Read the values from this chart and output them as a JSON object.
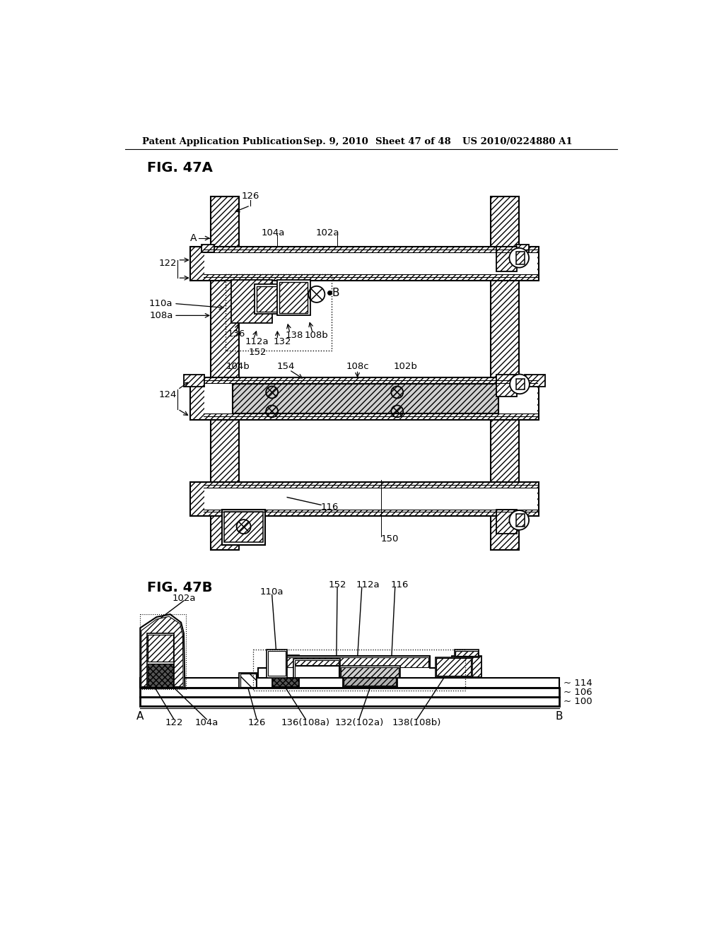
{
  "bg_color": "#ffffff",
  "header_text": "Patent Application Publication",
  "header_date": "Sep. 9, 2010",
  "header_sheet": "Sheet 47 of 48",
  "header_patent": "US 2010/0224880 A1"
}
